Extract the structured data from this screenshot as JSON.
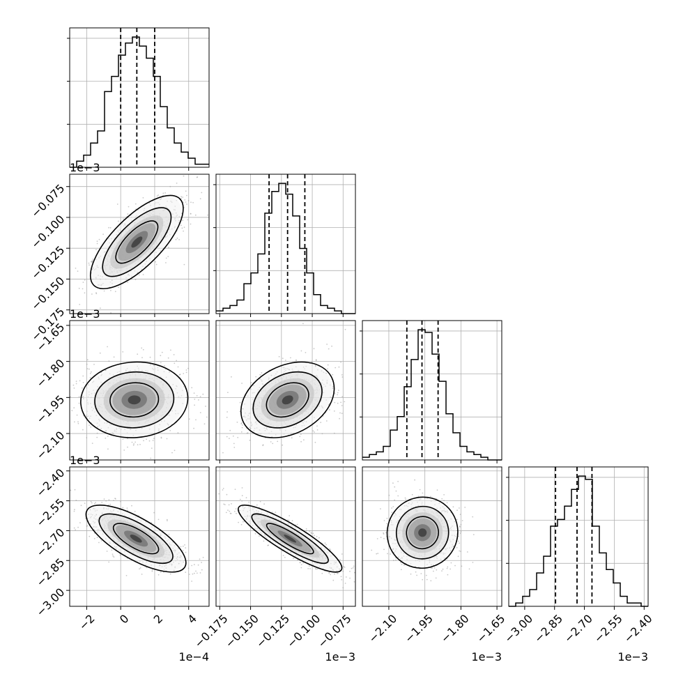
{
  "chart_data": {
    "type": "corner",
    "dimensions": [
      {
        "id": "p0",
        "ticks": [
          "−2",
          "0",
          "2",
          "4"
        ],
        "tick_values": [
          -2,
          0,
          2,
          4
        ],
        "range": [
          -3,
          5.2
        ],
        "exponent": "1e−4",
        "quantiles": [
          0.0,
          0.95,
          2.0
        ],
        "histogram": [
          0,
          2,
          4,
          8,
          12,
          25,
          30,
          37,
          41,
          43,
          40,
          36,
          30,
          20,
          13,
          8,
          5,
          3,
          1,
          1
        ]
      },
      {
        "id": "p1",
        "ticks": [
          "−0.175",
          "−0.150",
          "−0.125",
          "−0.100",
          "−0.075"
        ],
        "tick_values": [
          -0.175,
          -0.15,
          -0.125,
          -0.1,
          -0.075
        ],
        "range": [
          -0.178,
          -0.065
        ],
        "exponent": "1e−3",
        "quantiles": [
          -0.135,
          -0.12,
          -0.106
        ],
        "histogram": [
          1,
          2,
          3,
          5,
          11,
          15,
          22,
          37,
          45,
          48,
          44,
          36,
          24,
          15,
          7,
          3,
          2,
          1,
          0,
          0
        ]
      },
      {
        "id": "p2",
        "ticks": [
          "−2.10",
          "−1.95",
          "−1.80",
          "−1.65"
        ],
        "tick_values": [
          -2.1,
          -1.95,
          -1.8,
          -1.65
        ],
        "range": [
          -2.21,
          -1.63
        ],
        "exponent": "1e−3",
        "quantiles": [
          -2.025,
          -1.962,
          -1.895
        ],
        "histogram": [
          1,
          2,
          3,
          5,
          11,
          16,
          27,
          37,
          48,
          47,
          39,
          29,
          17,
          10,
          5,
          3,
          2,
          1,
          0,
          0
        ]
      },
      {
        "id": "p3",
        "ticks": [
          "−3.00",
          "−2.85",
          "−2.70",
          "−2.55",
          "−2.40"
        ],
        "tick_values": [
          -3.0,
          -2.85,
          -2.7,
          -2.55,
          -2.4
        ],
        "range": [
          -3.08,
          -2.38
        ],
        "exponent": "1e−3",
        "quantiles": [
          -2.845,
          -2.737,
          -2.662
        ],
        "histogram": [
          0,
          1,
          3,
          5,
          10,
          15,
          24,
          26,
          30,
          35,
          39,
          38,
          24,
          16,
          11,
          7,
          3,
          1,
          1,
          0
        ]
      }
    ],
    "pairs": [
      {
        "x": 0,
        "y": 1,
        "mean": [
          0.95,
          -0.12
        ],
        "sd": [
          1.3,
          0.018
        ],
        "corr": 0.72
      },
      {
        "x": 0,
        "y": 2,
        "mean": [
          0.8,
          -1.96
        ],
        "sd": [
          1.5,
          0.075
        ],
        "corr": 0.05
      },
      {
        "x": 1,
        "y": 2,
        "mean": [
          -0.12,
          -1.96
        ],
        "sd": [
          0.018,
          0.075
        ],
        "corr": 0.3
      },
      {
        "x": 0,
        "y": 3,
        "mean": [
          0.9,
          -2.74
        ],
        "sd": [
          1.4,
          0.08
        ],
        "corr": -0.72
      },
      {
        "x": 1,
        "y": 3,
        "mean": [
          -0.118,
          -2.74
        ],
        "sd": [
          0.02,
          0.08
        ],
        "corr": -0.88
      },
      {
        "x": 2,
        "y": 3,
        "mean": [
          -1.96,
          -2.71
        ],
        "sd": [
          0.07,
          0.085
        ],
        "corr": 0.02
      }
    ],
    "grid": true,
    "colors": {
      "line": "#000000",
      "grid": "#b0b0b0",
      "points": "#9a9a9a"
    }
  }
}
